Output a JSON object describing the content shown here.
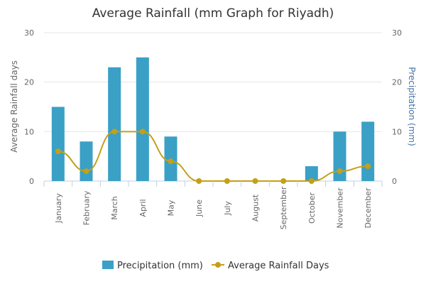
{
  "chart_data": {
    "type": "bar",
    "title": "Average Rainfall (mm Graph for Riyadh)",
    "categories": [
      "January",
      "February",
      "March",
      "April",
      "May",
      "June",
      "July",
      "August",
      "September",
      "October",
      "November",
      "December"
    ],
    "series": [
      {
        "name": "Precipitation (mm)",
        "type": "bar",
        "axis": "right",
        "color": "#3aa0c6",
        "values": [
          15,
          8,
          23,
          25,
          9,
          0,
          0,
          0,
          0,
          3,
          10,
          12
        ]
      },
      {
        "name": "Average Rainfall Days",
        "type": "line",
        "axis": "left",
        "color": "#c4a01a",
        "values": [
          6,
          2,
          10,
          10,
          4,
          0,
          0,
          0,
          0,
          0,
          2,
          3
        ]
      }
    ],
    "y_left": {
      "label": "Average Rainfall days",
      "ticks": [
        "0",
        "10",
        "20",
        "30"
      ],
      "min": 0,
      "max": 30
    },
    "y_right": {
      "label": "Precipitation (mm)",
      "ticks": [
        "0",
        "10",
        "20",
        "30"
      ],
      "min": 0,
      "max": 30,
      "label_color": "#4572a7"
    },
    "grid": true,
    "legend_position": "bottom-center"
  }
}
